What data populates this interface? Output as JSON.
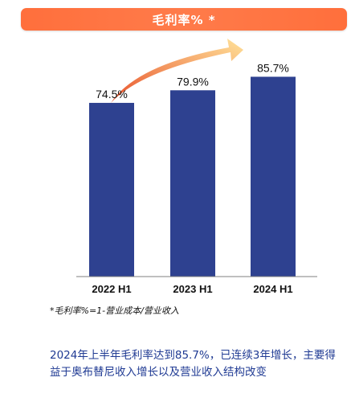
{
  "title": "毛利率% *",
  "chart_data": {
    "type": "bar",
    "title": "毛利率% *",
    "categories": [
      "2022 H1",
      "2023 H1",
      "2024 H1"
    ],
    "values": [
      74.5,
      79.9,
      85.7
    ],
    "data_labels": [
      "74.5%",
      "79.9%",
      "85.7%"
    ],
    "ylim": [
      0,
      100
    ],
    "grid": false,
    "bar_color": "#2e4190",
    "arrow_color_start": "#e8502a",
    "arrow_color_end": "#ffe39a"
  },
  "footnote": "*毛利率%=1-营业成本/营业收入",
  "summary": "2024年上半年毛利率达到85.7%，已连续3年增长，主要得益于奥布替尼收入增长以及营业收入结构改变"
}
